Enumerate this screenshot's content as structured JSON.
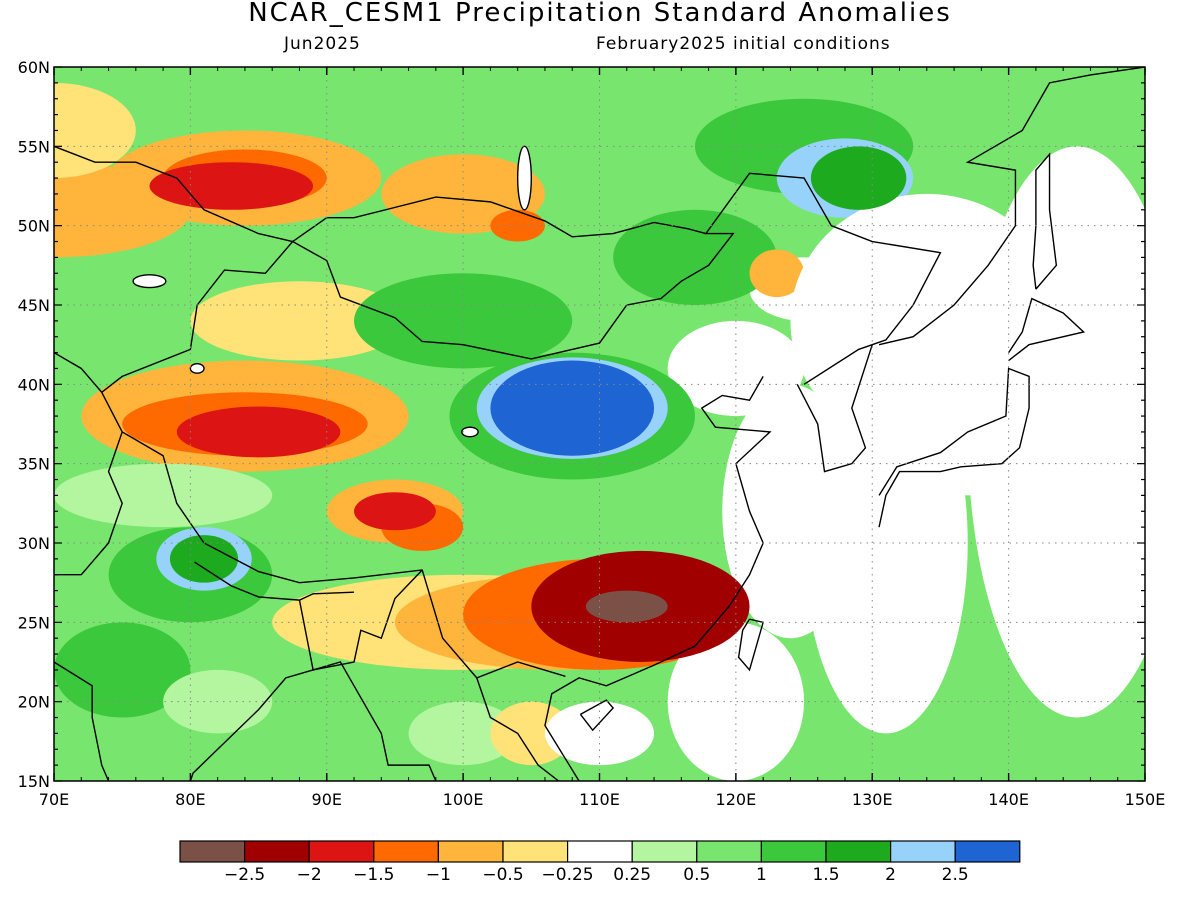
{
  "title": "NCAR_CESM1 Precipitation Standard Anomalies",
  "subtitle_left": "Jun2025",
  "subtitle_right": "February2025 initial conditions",
  "map": {
    "lon_range": [
      70,
      150
    ],
    "lat_range": [
      15,
      60
    ],
    "lon_labels": [
      "70E",
      "80E",
      "90E",
      "100E",
      "110E",
      "120E",
      "130E",
      "140E",
      "150E"
    ],
    "lat_labels": [
      "15N",
      "20N",
      "25N",
      "30N",
      "35N",
      "40N",
      "45N",
      "50N",
      "55N",
      "60N"
    ],
    "gridlines": true
  },
  "colorbar": {
    "colors": [
      "#7b5046",
      "#a00000",
      "#dc1414",
      "#ff6a00",
      "#ffb43c",
      "#ffe278",
      "#ffffff",
      "#b4f5a0",
      "#78e66e",
      "#3cc83c",
      "#1eaa1e",
      "#96d2fa",
      "#1e64d2"
    ],
    "labels": [
      "−2.5",
      "−2",
      "−1.5",
      "−1",
      "−0.5",
      "−0.25",
      "0.25",
      "0.5",
      "1",
      "1.5",
      "2",
      "2.5"
    ]
  },
  "anomaly_regions": [
    {
      "name": "south-china-dry",
      "lon": 113,
      "lat": 26,
      "rx": 8,
      "ry": 3.5,
      "level": "-2"
    },
    {
      "name": "south-china-core",
      "lon": 112,
      "lat": 26,
      "rx": 3,
      "ry": 1,
      "level": "-2.5"
    },
    {
      "name": "tarim-dry",
      "lon": 85,
      "lat": 37,
      "rx": 6,
      "ry": 1.6,
      "level": "-1.5"
    },
    {
      "name": "kazakh-dry",
      "lon": 83,
      "lat": 52.5,
      "rx": 6,
      "ry": 1.5,
      "level": "-1.5"
    },
    {
      "name": "tibet-dry",
      "lon": 95,
      "lat": 32,
      "rx": 3,
      "ry": 1.2,
      "level": "-1.5"
    },
    {
      "name": "north-china-wet",
      "lon": 108,
      "lat": 38.5,
      "rx": 6,
      "ry": 3,
      "level": "2.5"
    },
    {
      "name": "manchuria-wet",
      "lon": 129,
      "lat": 53,
      "rx": 3.5,
      "ry": 2,
      "level": "2"
    },
    {
      "name": "himalaya-wet",
      "lon": 81,
      "lat": 29,
      "rx": 2.5,
      "ry": 1.5,
      "level": "2"
    }
  ]
}
